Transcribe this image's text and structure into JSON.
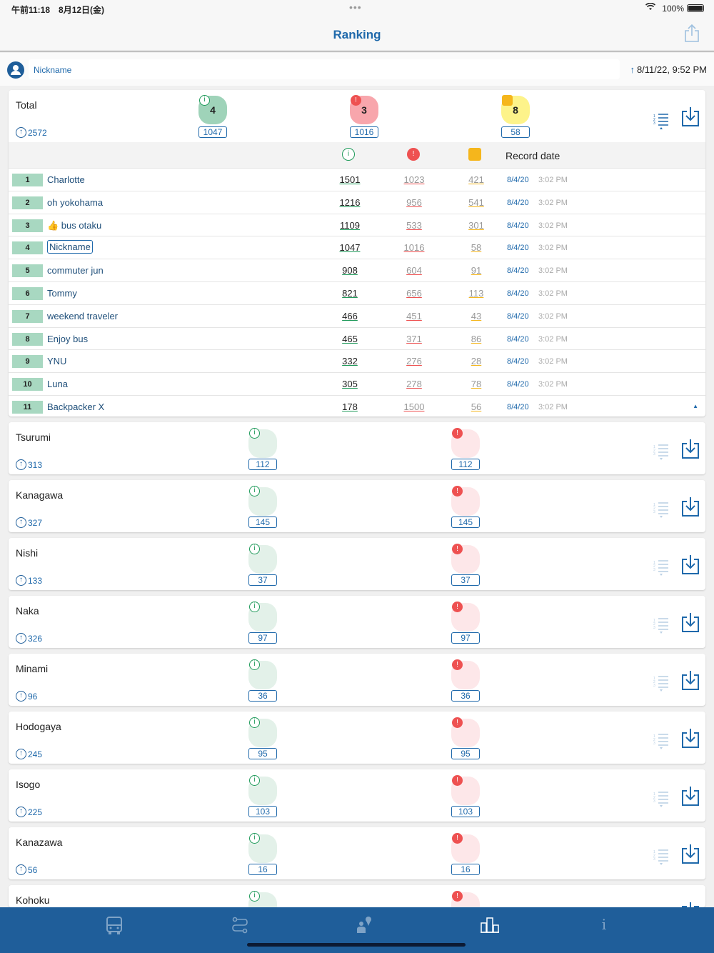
{
  "status": {
    "time": "午前11:18　8月12日(金)",
    "battery": "100%"
  },
  "nav": {
    "title": "Ranking"
  },
  "user": {
    "nickname": "Nickname",
    "updated": "8/11/22, 9:52 PM"
  },
  "total": {
    "name": "Total",
    "points": "2572",
    "badge_green": "4",
    "badge_red": "3",
    "badge_yellow": "8",
    "count_green": "1047",
    "count_red": "1016",
    "count_yellow": "58"
  },
  "table": {
    "record_date_header": "Record date",
    "rows": [
      {
        "rank": "1",
        "name": "Charlotte",
        "a": "1501",
        "b": "1023",
        "c": "421",
        "date": "8/4/20",
        "time": "3:02 PM"
      },
      {
        "rank": "2",
        "name": "oh yokohama",
        "a": "1216",
        "b": "956",
        "c": "541",
        "date": "8/4/20",
        "time": "3:02 PM"
      },
      {
        "rank": "3",
        "name": "👍 bus otaku",
        "a": "1109",
        "b": "533",
        "c": "301",
        "date": "8/4/20",
        "time": "3:02 PM"
      },
      {
        "rank": "4",
        "name": "Nickname",
        "a": "1047",
        "b": "1016",
        "c": "58",
        "date": "8/4/20",
        "time": "3:02 PM"
      },
      {
        "rank": "5",
        "name": "commuter jun",
        "a": "908",
        "b": "604",
        "c": "91",
        "date": "8/4/20",
        "time": "3:02 PM"
      },
      {
        "rank": "6",
        "name": "Tommy",
        "a": "821",
        "b": "656",
        "c": "113",
        "date": "8/4/20",
        "time": "3:02 PM"
      },
      {
        "rank": "7",
        "name": "weekend traveler",
        "a": "466",
        "b": "451",
        "c": "43",
        "date": "8/4/20",
        "time": "3:02 PM"
      },
      {
        "rank": "8",
        "name": "Enjoy bus",
        "a": "465",
        "b": "371",
        "c": "86",
        "date": "8/4/20",
        "time": "3:02 PM"
      },
      {
        "rank": "9",
        "name": "YNU",
        "a": "332",
        "b": "276",
        "c": "28",
        "date": "8/4/20",
        "time": "3:02 PM"
      },
      {
        "rank": "10",
        "name": "Luna",
        "a": "305",
        "b": "278",
        "c": "78",
        "date": "8/4/20",
        "time": "3:02 PM"
      },
      {
        "rank": "11",
        "name": "Backpacker X",
        "a": "178",
        "b": "1500",
        "c": "56",
        "date": "8/4/20",
        "time": "3:02 PM"
      }
    ]
  },
  "wards": [
    {
      "name": "Tsurumi",
      "points": "313",
      "count_green": "112",
      "count_red": "112"
    },
    {
      "name": "Kanagawa",
      "points": "327",
      "count_green": "145",
      "count_red": "145"
    },
    {
      "name": "Nishi",
      "points": "133",
      "count_green": "37",
      "count_red": "37"
    },
    {
      "name": "Naka",
      "points": "326",
      "count_green": "97",
      "count_red": "97"
    },
    {
      "name": "Minami",
      "points": "96",
      "count_green": "36",
      "count_red": "36"
    },
    {
      "name": "Hodogaya",
      "points": "245",
      "count_green": "95",
      "count_red": "95"
    },
    {
      "name": "Isogo",
      "points": "225",
      "count_green": "103",
      "count_red": "103"
    },
    {
      "name": "Kanazawa",
      "points": "56",
      "count_green": "16",
      "count_red": "16"
    },
    {
      "name": "Kohoku",
      "points": "",
      "count_green": "",
      "count_red": ""
    }
  ],
  "tabs": [
    "bus-icon",
    "route-icon",
    "map-person-icon",
    "ranking-icon",
    "info-icon"
  ]
}
